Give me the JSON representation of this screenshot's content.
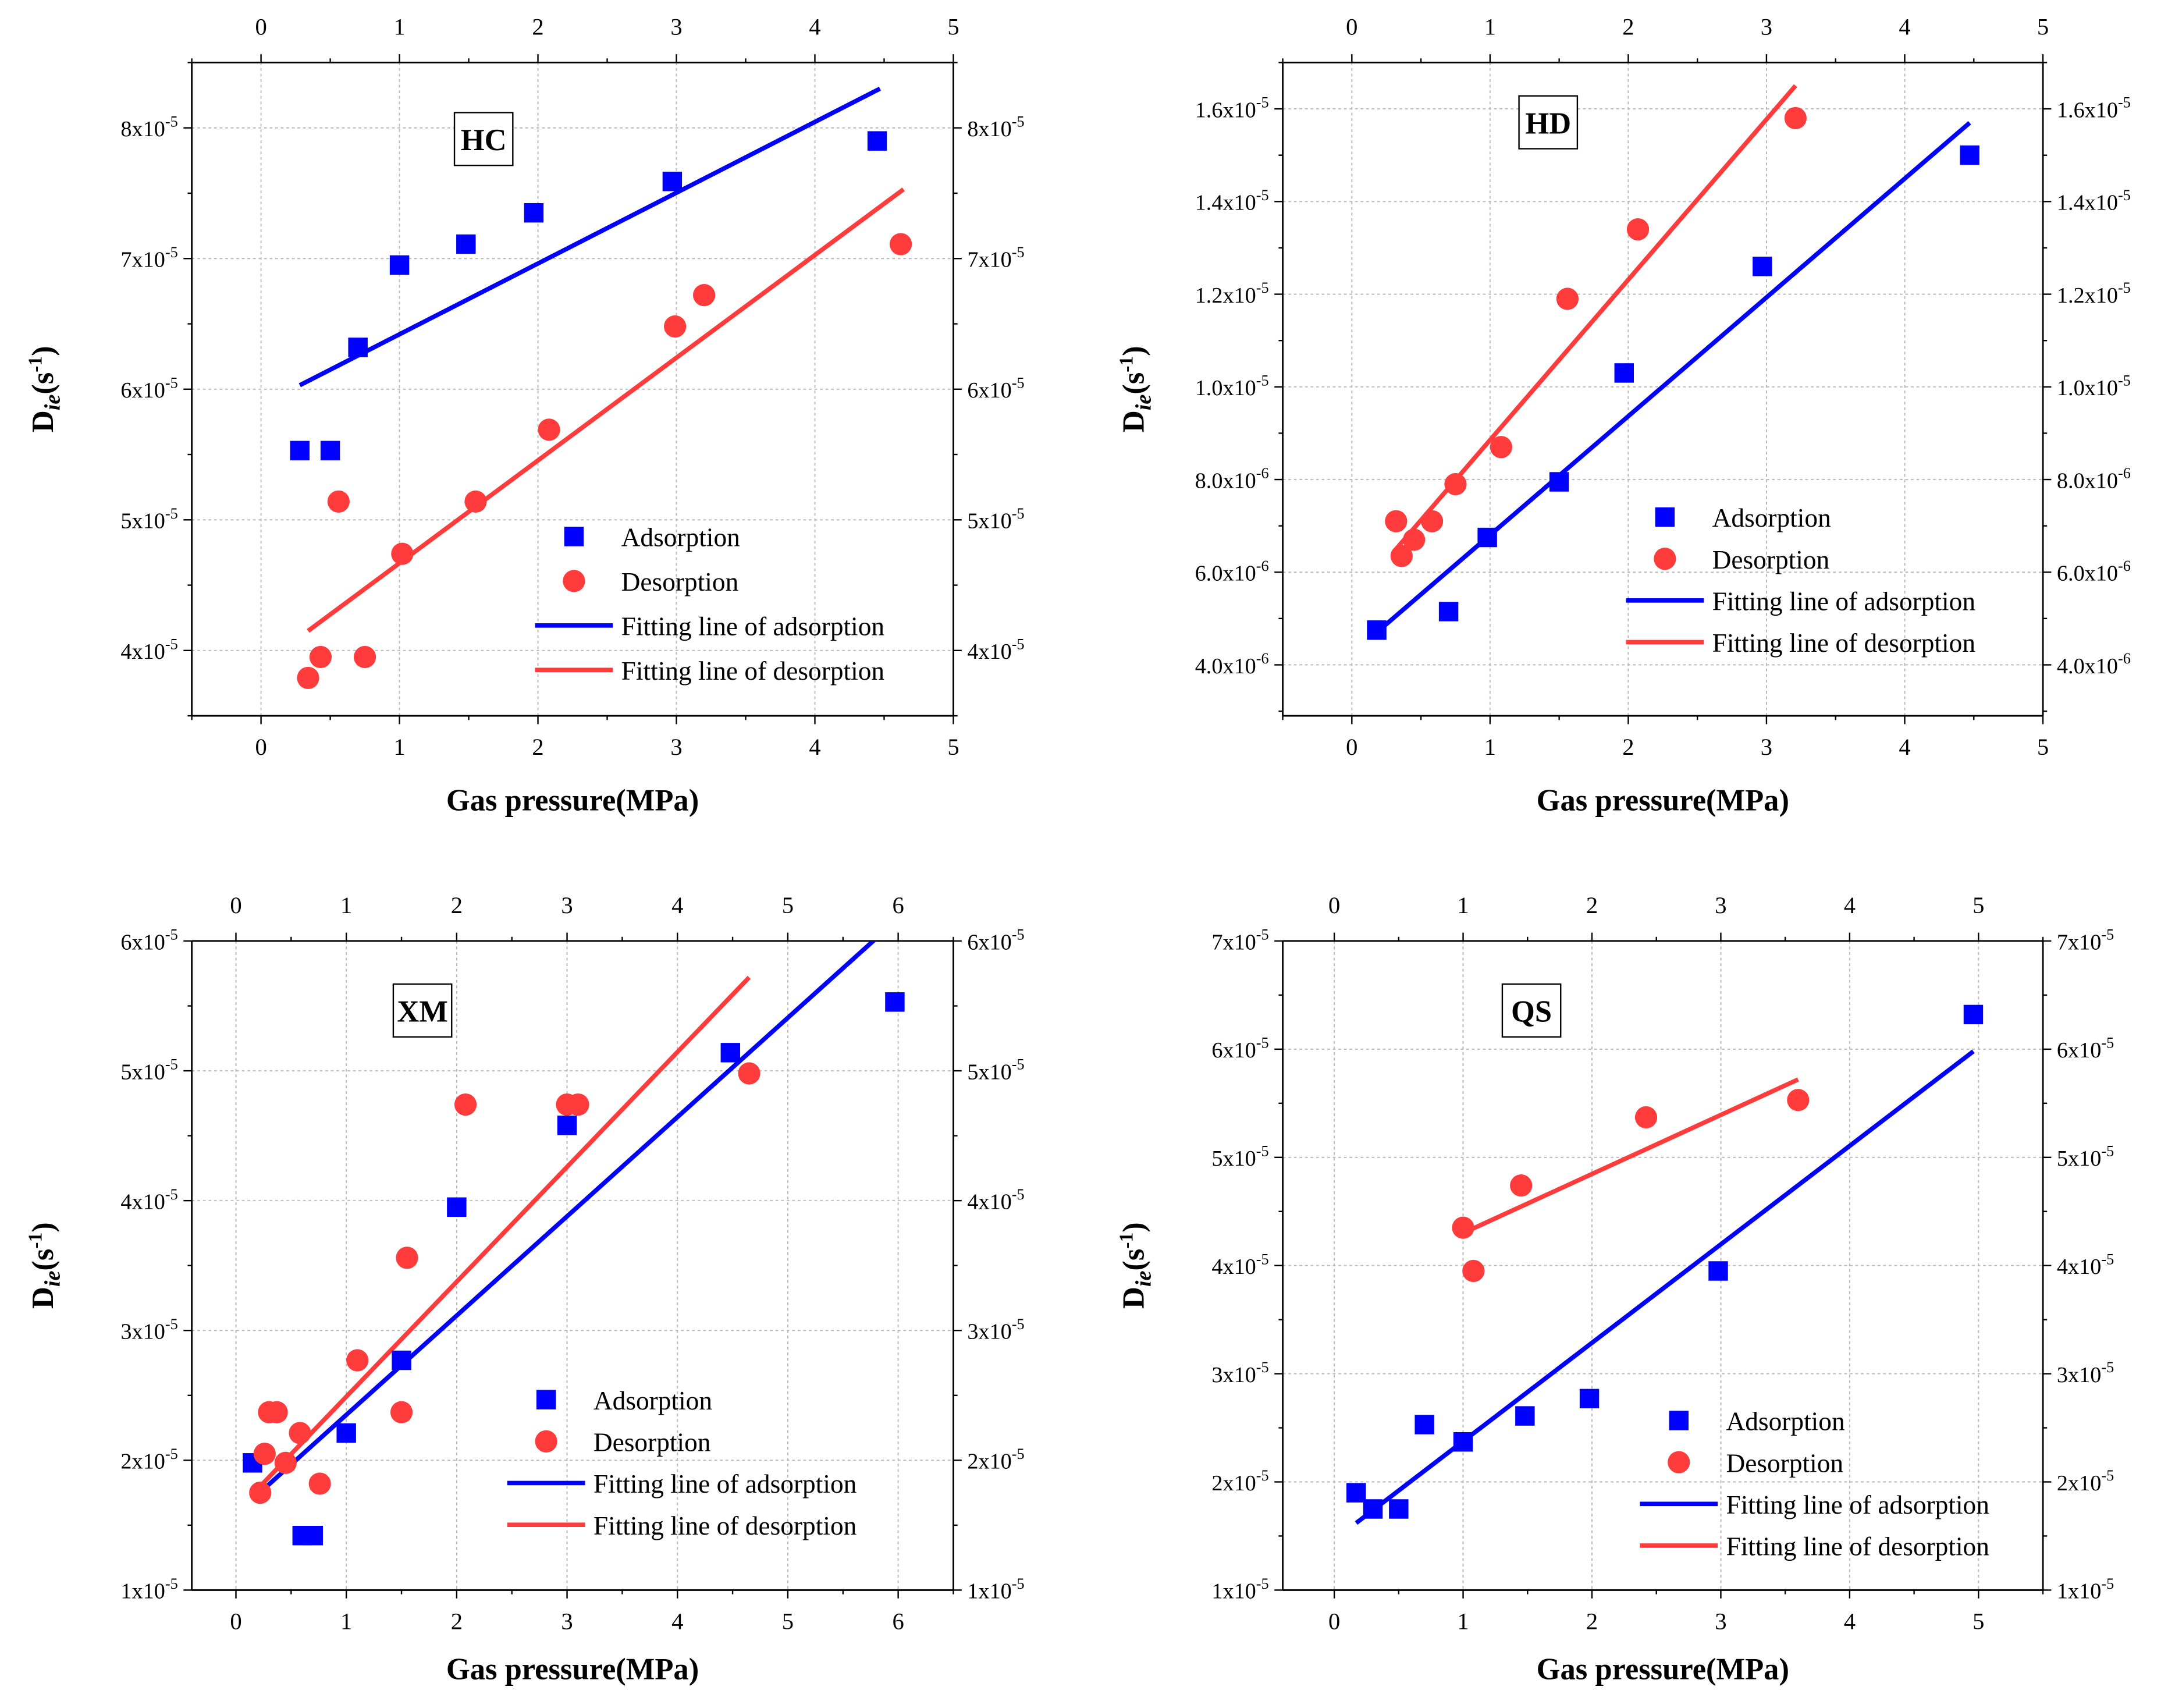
{
  "colors": {
    "adsorption": "#0000ff",
    "desorption": "#ff3b3b",
    "grid": "#b8b8b8",
    "axis": "#000000",
    "background": "#ffffff"
  },
  "chart_data": [
    {
      "id": "hc",
      "type": "scatter",
      "title": "HC",
      "xlabel": "Gas pressure(MPa)",
      "ylabel": "D_ie(s^-1)",
      "xlim": [
        -0.5,
        5
      ],
      "ylim": [
        3.5e-05,
        8.5e-05
      ],
      "xticks": [
        0,
        1,
        2,
        3,
        4,
        5
      ],
      "ytick_labels": [
        {
          "value": 4e-05,
          "mant": "4x10",
          "exp": "-5"
        },
        {
          "value": 5e-05,
          "mant": "5x10",
          "exp": "-5"
        },
        {
          "value": 6e-05,
          "mant": "6x10",
          "exp": "-5"
        },
        {
          "value": 7e-05,
          "mant": "7x10",
          "exp": "-5"
        },
        {
          "value": 8e-05,
          "mant": "8x10",
          "exp": "-5"
        }
      ],
      "grid": true,
      "legend_position": "bottom-right",
      "series": [
        {
          "name": "Adsorption",
          "role": "adsorption",
          "marker": "square",
          "x": [
            0.28,
            0.5,
            0.7,
            1.0,
            1.48,
            1.97,
            2.97,
            4.45
          ],
          "y": [
            5.53e-05,
            5.53e-05,
            6.32e-05,
            6.95e-05,
            7.11e-05,
            7.35e-05,
            7.59e-05,
            7.9e-05
          ]
        },
        {
          "name": "Desorption",
          "role": "desorption",
          "marker": "circle",
          "x": [
            0.34,
            0.43,
            0.56,
            0.75,
            1.02,
            1.55,
            2.08,
            2.99,
            3.2,
            4.62
          ],
          "y": [
            3.79e-05,
            3.95e-05,
            5.14e-05,
            3.95e-05,
            4.74e-05,
            5.14e-05,
            5.69e-05,
            6.48e-05,
            6.72e-05,
            7.11e-05
          ]
        },
        {
          "name": "Fitting line of adsorption",
          "role": "adsorption",
          "marker": "line",
          "x": [
            0.28,
            4.47
          ],
          "y": [
            6.03e-05,
            8.3e-05
          ]
        },
        {
          "name": "Fitting line of desorption",
          "role": "desorption",
          "marker": "line",
          "x": [
            0.34,
            4.64
          ],
          "y": [
            4.15e-05,
            7.53e-05
          ]
        }
      ]
    },
    {
      "id": "hd",
      "type": "scatter",
      "title": "HD",
      "xlabel": "Gas pressure(MPa)",
      "ylabel": "D_ie(s^-1)",
      "xlim": [
        -0.5,
        5
      ],
      "ylim": [
        2.9e-06,
        1.7e-05
      ],
      "xticks": [
        0,
        1,
        2,
        3,
        4,
        5
      ],
      "ytick_labels": [
        {
          "value": 4e-06,
          "mant": "4.0x10",
          "exp": "-6"
        },
        {
          "value": 6e-06,
          "mant": "6.0x10",
          "exp": "-6"
        },
        {
          "value": 8e-06,
          "mant": "8.0x10",
          "exp": "-6"
        },
        {
          "value": 1e-05,
          "mant": "1.0x10",
          "exp": "-5"
        },
        {
          "value": 1.2e-05,
          "mant": "1.2x10",
          "exp": "-5"
        },
        {
          "value": 1.4e-05,
          "mant": "1.4x10",
          "exp": "-5"
        },
        {
          "value": 1.6e-05,
          "mant": "1.6x10",
          "exp": "-5"
        }
      ],
      "grid": true,
      "legend_position": "bottom-right",
      "series": [
        {
          "name": "Adsorption",
          "role": "adsorption",
          "marker": "square",
          "x": [
            0.18,
            0.7,
            0.98,
            1.5,
            1.97,
            2.97,
            4.47
          ],
          "y": [
            4.75e-06,
            5.15e-06,
            6.75e-06,
            7.95e-06,
            1.03e-05,
            1.26e-05,
            1.5e-05
          ]
        },
        {
          "name": "Desorption",
          "role": "desorption",
          "marker": "circle",
          "x": [
            0.32,
            0.36,
            0.45,
            0.58,
            0.75,
            1.08,
            1.56,
            2.07,
            3.21
          ],
          "y": [
            7.1e-06,
            6.35e-06,
            6.7e-06,
            7.1e-06,
            7.9e-06,
            8.7e-06,
            1.19e-05,
            1.34e-05,
            1.58e-05
          ]
        },
        {
          "name": "Fitting line of adsorption",
          "role": "adsorption",
          "marker": "line",
          "x": [
            0.18,
            4.47
          ],
          "y": [
            4.7e-06,
            1.57e-05
          ]
        },
        {
          "name": "Fitting line of desorption",
          "role": "desorption",
          "marker": "line",
          "x": [
            0.32,
            3.21
          ],
          "y": [
            6.5e-06,
            1.65e-05
          ]
        }
      ]
    },
    {
      "id": "xm",
      "type": "scatter",
      "title": "XM",
      "xlabel": "Gas pressure(MPa)",
      "ylabel": "D_ie(s^-1)",
      "xlim": [
        -0.4,
        6.5
      ],
      "ylim": [
        1e-05,
        6e-05
      ],
      "xticks": [
        0,
        1,
        2,
        3,
        4,
        5,
        6
      ],
      "ytick_labels": [
        {
          "value": 1e-05,
          "mant": "1x10",
          "exp": "-5"
        },
        {
          "value": 2e-05,
          "mant": "2x10",
          "exp": "-5"
        },
        {
          "value": 3e-05,
          "mant": "3x10",
          "exp": "-5"
        },
        {
          "value": 4e-05,
          "mant": "4x10",
          "exp": "-5"
        },
        {
          "value": 5e-05,
          "mant": "5x10",
          "exp": "-5"
        },
        {
          "value": 6e-05,
          "mant": "6x10",
          "exp": "-5"
        }
      ],
      "grid": true,
      "legend_position": "bottom-right",
      "series": [
        {
          "name": "Adsorption",
          "role": "adsorption",
          "marker": "square",
          "x": [
            0.15,
            0.6,
            0.7,
            1.0,
            1.5,
            2.0,
            3.0,
            4.48,
            5.97
          ],
          "y": [
            1.98e-05,
            1.42e-05,
            1.42e-05,
            2.21e-05,
            2.77e-05,
            3.95e-05,
            4.58e-05,
            5.14e-05,
            5.53e-05
          ]
        },
        {
          "name": "Desorption",
          "role": "desorption",
          "marker": "circle",
          "x": [
            0.22,
            0.26,
            0.3,
            0.37,
            0.45,
            0.58,
            0.76,
            1.1,
            1.5,
            1.55,
            2.08,
            3.0,
            3.1,
            4.65
          ],
          "y": [
            1.75e-05,
            2.05e-05,
            2.37e-05,
            2.37e-05,
            1.98e-05,
            2.21e-05,
            1.82e-05,
            2.77e-05,
            2.37e-05,
            3.56e-05,
            4.74e-05,
            4.74e-05,
            4.74e-05,
            4.98e-05
          ]
        },
        {
          "name": "Fitting line of adsorption",
          "role": "adsorption",
          "marker": "line",
          "x": [
            0.15,
            5.8
          ],
          "y": [
            1.7e-05,
            6.02e-05
          ]
        },
        {
          "name": "Fitting line of desorption",
          "role": "desorption",
          "marker": "line",
          "x": [
            0.22,
            4.65
          ],
          "y": [
            1.8e-05,
            5.72e-05
          ]
        }
      ]
    },
    {
      "id": "qs",
      "type": "scatter",
      "title": "QS",
      "xlabel": "Gas pressure(MPa)",
      "ylabel": "D_ie(s^-1)",
      "xlim": [
        -0.4,
        5.5
      ],
      "ylim": [
        1e-05,
        7e-05
      ],
      "xticks": [
        0,
        1,
        2,
        3,
        4,
        5
      ],
      "ytick_labels": [
        {
          "value": 1e-05,
          "mant": "1x10",
          "exp": "-5"
        },
        {
          "value": 2e-05,
          "mant": "2x10",
          "exp": "-5"
        },
        {
          "value": 3e-05,
          "mant": "3x10",
          "exp": "-5"
        },
        {
          "value": 4e-05,
          "mant": "4x10",
          "exp": "-5"
        },
        {
          "value": 5e-05,
          "mant": "5x10",
          "exp": "-5"
        },
        {
          "value": 6e-05,
          "mant": "6x10",
          "exp": "-5"
        },
        {
          "value": 7e-05,
          "mant": "7x10",
          "exp": "-5"
        }
      ],
      "grid": true,
      "legend_position": "bottom-right",
      "series": [
        {
          "name": "Adsorption",
          "role": "adsorption",
          "marker": "square",
          "x": [
            0.17,
            0.3,
            0.5,
            0.7,
            1.0,
            1.48,
            1.98,
            2.98,
            4.96
          ],
          "y": [
            1.9e-05,
            1.75e-05,
            1.75e-05,
            2.53e-05,
            2.37e-05,
            2.61e-05,
            2.77e-05,
            3.95e-05,
            6.32e-05
          ]
        },
        {
          "name": "Desorption",
          "role": "desorption",
          "marker": "circle",
          "x": [
            1.0,
            1.08,
            1.45,
            2.42,
            3.6
          ],
          "y": [
            4.35e-05,
            3.95e-05,
            4.74e-05,
            5.37e-05,
            5.53e-05
          ]
        },
        {
          "name": "Fitting line of adsorption",
          "role": "adsorption",
          "marker": "line",
          "x": [
            0.17,
            4.96
          ],
          "y": [
            1.62e-05,
            5.98e-05
          ]
        },
        {
          "name": "Fitting line of desorption",
          "role": "desorption",
          "marker": "line",
          "x": [
            1.0,
            3.6
          ],
          "y": [
            4.3e-05,
            5.72e-05
          ]
        }
      ]
    }
  ]
}
